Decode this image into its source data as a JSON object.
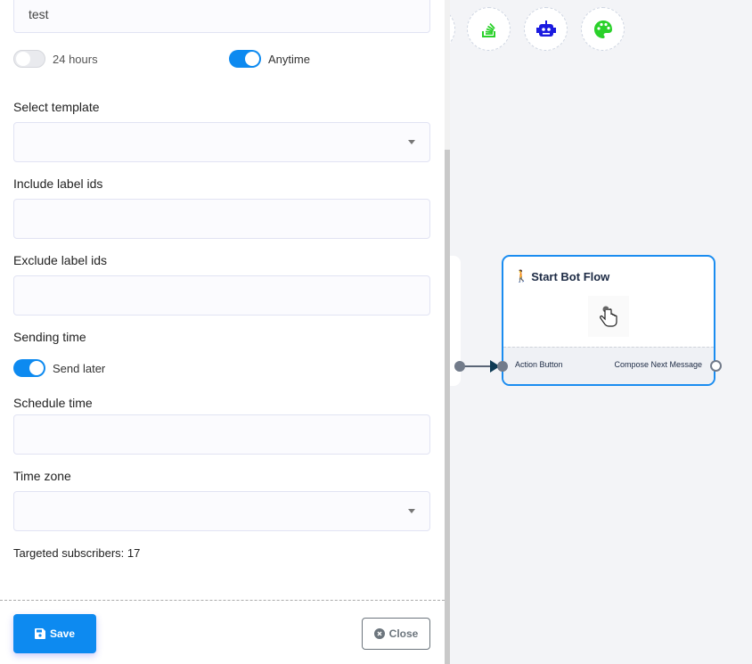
{
  "form": {
    "name_value": "test",
    "toggle_24h": {
      "label": "24 hours",
      "on": false
    },
    "toggle_anytime": {
      "label": "Anytime",
      "on": true
    },
    "select_template": {
      "label": "Select template",
      "value": ""
    },
    "include_labels": {
      "label": "Include label ids",
      "value": ""
    },
    "exclude_labels": {
      "label": "Exclude label ids",
      "value": ""
    },
    "sending_time": {
      "label": "Sending time",
      "toggle_label": "Send later",
      "on": true
    },
    "schedule_time": {
      "label": "Schedule time",
      "value": ""
    },
    "time_zone": {
      "label": "Time zone",
      "value": ""
    },
    "targeted": "Targeted subscribers: 17"
  },
  "footer": {
    "save_label": "Save",
    "close_label": "Close"
  },
  "toolbar": {
    "icons": [
      "stackoverflow-icon",
      "robot-icon",
      "palette-icon"
    ]
  },
  "node": {
    "title": "Start Bot Flow",
    "left_port": "Action Button",
    "right_port": "Compose Next Message"
  },
  "colors": {
    "accent": "#0d8af0",
    "node_border": "#1a8cf0"
  }
}
